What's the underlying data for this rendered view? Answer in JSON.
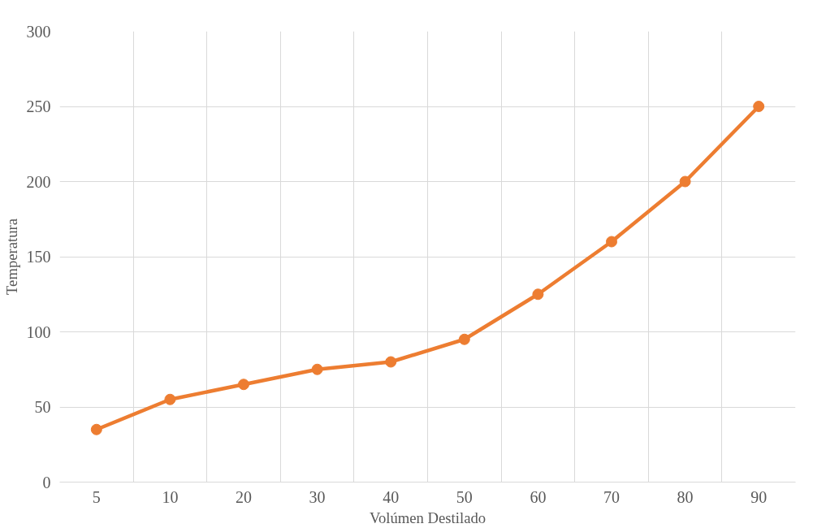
{
  "chart_data": {
    "type": "line",
    "xlabel": "Volúmen Destilado",
    "ylabel": "Temperatura",
    "categories": [
      "5",
      "10",
      "20",
      "30",
      "40",
      "50",
      "60",
      "70",
      "80",
      "90"
    ],
    "series": [
      {
        "color": "#ed7d31",
        "values": [
          35,
          55,
          65,
          75,
          80,
          95,
          125,
          160,
          200,
          250
        ]
      }
    ],
    "ylim": [
      0,
      300
    ],
    "yticks": [
      0,
      50,
      100,
      150,
      200,
      250,
      300
    ],
    "grid": true,
    "marker": "circle",
    "line_style": "solid"
  }
}
